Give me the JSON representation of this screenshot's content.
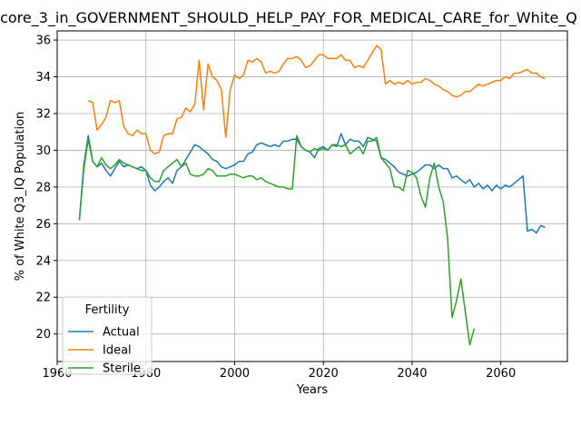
{
  "chart_data": {
    "type": "line",
    "title": "core_3_in_GOVERNMENT_SHOULD_HELP_PAY_FOR_MEDICAL_CARE_for_White_Q",
    "xlabel": "Years",
    "ylabel": "% of White Q3_IQ Population",
    "xlim": [
      1960,
      2075
    ],
    "ylim": [
      18.5,
      36.5
    ],
    "xticks": [
      1960,
      1980,
      2000,
      2020,
      2040,
      2060
    ],
    "yticks": [
      20,
      22,
      24,
      26,
      28,
      30,
      32,
      34,
      36
    ],
    "grid": true,
    "legend": {
      "title": "Fertility",
      "placement": "lower-left"
    },
    "series": [
      {
        "name": "Actual",
        "color": "#1f77b4",
        "points": [
          [
            1965,
            26.2
          ],
          [
            1966,
            29.2
          ],
          [
            1967,
            30.8
          ],
          [
            1968,
            29.4
          ],
          [
            1969,
            29.1
          ],
          [
            1970,
            29.3
          ],
          [
            1971,
            28.9
          ],
          [
            1972,
            28.6
          ],
          [
            1973,
            29.0
          ],
          [
            1974,
            29.4
          ],
          [
            1975,
            29.1
          ],
          [
            1976,
            29.2
          ],
          [
            1977,
            29.1
          ],
          [
            1978,
            29.0
          ],
          [
            1979,
            29.1
          ],
          [
            1980,
            28.9
          ],
          [
            1981,
            28.1
          ],
          [
            1982,
            27.8
          ],
          [
            1983,
            28.0
          ],
          [
            1984,
            28.3
          ],
          [
            1985,
            28.5
          ],
          [
            1986,
            28.2
          ],
          [
            1987,
            28.9
          ],
          [
            1988,
            29.1
          ],
          [
            1989,
            29.5
          ],
          [
            1990,
            29.9
          ],
          [
            1991,
            30.3
          ],
          [
            1992,
            30.2
          ],
          [
            1993,
            30.0
          ],
          [
            1994,
            29.8
          ],
          [
            1995,
            29.5
          ],
          [
            1996,
            29.4
          ],
          [
            1997,
            29.1
          ],
          [
            1998,
            29.0
          ],
          [
            1999,
            29.1
          ],
          [
            2000,
            29.2
          ],
          [
            2001,
            29.4
          ],
          [
            2002,
            29.4
          ],
          [
            2003,
            29.8
          ],
          [
            2004,
            29.9
          ],
          [
            2005,
            30.3
          ],
          [
            2006,
            30.4
          ],
          [
            2007,
            30.3
          ],
          [
            2008,
            30.2
          ],
          [
            2009,
            30.3
          ],
          [
            2010,
            30.2
          ],
          [
            2011,
            30.5
          ],
          [
            2012,
            30.5
          ],
          [
            2013,
            30.6
          ],
          [
            2014,
            30.6
          ],
          [
            2015,
            30.2
          ],
          [
            2016,
            30.0
          ],
          [
            2017,
            29.9
          ],
          [
            2018,
            29.6
          ],
          [
            2019,
            30.1
          ],
          [
            2020,
            30.2
          ],
          [
            2021,
            30.0
          ],
          [
            2022,
            30.3
          ],
          [
            2023,
            30.2
          ],
          [
            2024,
            30.9
          ],
          [
            2025,
            30.3
          ],
          [
            2026,
            30.6
          ],
          [
            2027,
            30.5
          ],
          [
            2028,
            30.5
          ],
          [
            2029,
            30.2
          ],
          [
            2030,
            30.7
          ],
          [
            2031,
            30.6
          ],
          [
            2032,
            30.5
          ],
          [
            2033,
            29.6
          ],
          [
            2034,
            29.5
          ],
          [
            2035,
            29.3
          ],
          [
            2036,
            29.1
          ],
          [
            2037,
            28.8
          ],
          [
            2038,
            28.7
          ],
          [
            2039,
            28.6
          ],
          [
            2040,
            28.7
          ],
          [
            2041,
            28.8
          ],
          [
            2042,
            29.0
          ],
          [
            2043,
            29.2
          ],
          [
            2044,
            29.2
          ],
          [
            2045,
            29.0
          ],
          [
            2046,
            29.2
          ],
          [
            2047,
            29.0
          ],
          [
            2048,
            29.0
          ],
          [
            2049,
            28.5
          ],
          [
            2050,
            28.6
          ],
          [
            2051,
            28.4
          ],
          [
            2052,
            28.2
          ],
          [
            2053,
            28.4
          ],
          [
            2054,
            28.0
          ],
          [
            2055,
            28.2
          ],
          [
            2056,
            27.9
          ],
          [
            2057,
            28.1
          ],
          [
            2058,
            27.8
          ],
          [
            2059,
            28.1
          ],
          [
            2060,
            27.9
          ],
          [
            2061,
            28.1
          ],
          [
            2062,
            28.0
          ],
          [
            2063,
            28.2
          ],
          [
            2064,
            28.4
          ],
          [
            2065,
            28.6
          ],
          [
            2066,
            25.6
          ],
          [
            2067,
            25.7
          ],
          [
            2068,
            25.5
          ],
          [
            2069,
            25.9
          ],
          [
            2070,
            25.8
          ]
        ]
      },
      {
        "name": "Ideal",
        "color": "#ff7f0e",
        "points": [
          [
            1967,
            32.7
          ],
          [
            1968,
            32.6
          ],
          [
            1969,
            31.1
          ],
          [
            1970,
            31.4
          ],
          [
            1971,
            31.8
          ],
          [
            1972,
            32.7
          ],
          [
            1973,
            32.6
          ],
          [
            1974,
            32.7
          ],
          [
            1975,
            31.3
          ],
          [
            1976,
            30.9
          ],
          [
            1977,
            30.8
          ],
          [
            1978,
            31.1
          ],
          [
            1979,
            30.9
          ],
          [
            1980,
            30.9
          ],
          [
            1981,
            30.0
          ],
          [
            1982,
            29.8
          ],
          [
            1983,
            29.9
          ],
          [
            1984,
            30.8
          ],
          [
            1985,
            30.9
          ],
          [
            1986,
            30.9
          ],
          [
            1987,
            31.7
          ],
          [
            1988,
            31.8
          ],
          [
            1989,
            32.3
          ],
          [
            1990,
            32.1
          ],
          [
            1991,
            32.5
          ],
          [
            1992,
            34.9
          ],
          [
            1993,
            32.2
          ],
          [
            1994,
            34.7
          ],
          [
            1995,
            34.0
          ],
          [
            1996,
            33.8
          ],
          [
            1997,
            33.3
          ],
          [
            1998,
            30.7
          ],
          [
            1999,
            33.3
          ],
          [
            2000,
            34.1
          ],
          [
            2001,
            33.9
          ],
          [
            2002,
            34.1
          ],
          [
            2003,
            34.9
          ],
          [
            2004,
            34.8
          ],
          [
            2005,
            35.0
          ],
          [
            2006,
            34.8
          ],
          [
            2007,
            34.2
          ],
          [
            2008,
            34.3
          ],
          [
            2009,
            34.2
          ],
          [
            2010,
            34.3
          ],
          [
            2011,
            34.7
          ],
          [
            2012,
            35.0
          ],
          [
            2013,
            35.0
          ],
          [
            2014,
            35.1
          ],
          [
            2015,
            34.9
          ],
          [
            2016,
            34.5
          ],
          [
            2017,
            34.6
          ],
          [
            2018,
            34.9
          ],
          [
            2019,
            35.2
          ],
          [
            2020,
            35.2
          ],
          [
            2021,
            35.0
          ],
          [
            2022,
            35.0
          ],
          [
            2023,
            35.0
          ],
          [
            2024,
            35.2
          ],
          [
            2025,
            34.9
          ],
          [
            2026,
            34.9
          ],
          [
            2027,
            34.5
          ],
          [
            2028,
            34.6
          ],
          [
            2029,
            34.5
          ],
          [
            2030,
            34.9
          ],
          [
            2031,
            35.3
          ],
          [
            2032,
            35.7
          ],
          [
            2033,
            35.5
          ],
          [
            2034,
            33.6
          ],
          [
            2035,
            33.8
          ],
          [
            2036,
            33.6
          ],
          [
            2037,
            33.7
          ],
          [
            2038,
            33.6
          ],
          [
            2039,
            33.8
          ],
          [
            2040,
            33.6
          ],
          [
            2041,
            33.7
          ],
          [
            2042,
            33.7
          ],
          [
            2043,
            33.9
          ],
          [
            2044,
            33.8
          ],
          [
            2045,
            33.6
          ],
          [
            2046,
            33.5
          ],
          [
            2047,
            33.3
          ],
          [
            2048,
            33.2
          ],
          [
            2049,
            33.0
          ],
          [
            2050,
            32.9
          ],
          [
            2051,
            33.0
          ],
          [
            2052,
            33.2
          ],
          [
            2053,
            33.2
          ],
          [
            2054,
            33.4
          ],
          [
            2055,
            33.6
          ],
          [
            2056,
            33.5
          ],
          [
            2057,
            33.6
          ],
          [
            2058,
            33.7
          ],
          [
            2059,
            33.8
          ],
          [
            2060,
            33.8
          ],
          [
            2061,
            34.0
          ],
          [
            2062,
            33.9
          ],
          [
            2063,
            34.2
          ],
          [
            2064,
            34.2
          ],
          [
            2065,
            34.3
          ],
          [
            2066,
            34.4
          ],
          [
            2067,
            34.2
          ],
          [
            2068,
            34.2
          ],
          [
            2069,
            34.0
          ],
          [
            2070,
            33.9
          ]
        ]
      },
      {
        "name": "Sterile",
        "color": "#2ca02c",
        "points": [
          [
            1965,
            26.2
          ],
          [
            1966,
            29.0
          ],
          [
            1967,
            30.6
          ],
          [
            1968,
            29.4
          ],
          [
            1969,
            29.1
          ],
          [
            1970,
            29.6
          ],
          [
            1971,
            29.2
          ],
          [
            1972,
            29.0
          ],
          [
            1973,
            29.2
          ],
          [
            1974,
            29.5
          ],
          [
            1975,
            29.3
          ],
          [
            1976,
            29.2
          ],
          [
            1977,
            29.1
          ],
          [
            1978,
            29.0
          ],
          [
            1979,
            28.9
          ],
          [
            1980,
            28.9
          ],
          [
            1981,
            28.5
          ],
          [
            1982,
            28.3
          ],
          [
            1983,
            28.3
          ],
          [
            1984,
            28.9
          ],
          [
            1985,
            29.1
          ],
          [
            1986,
            29.3
          ],
          [
            1987,
            29.5
          ],
          [
            1988,
            29.1
          ],
          [
            1989,
            29.3
          ],
          [
            1990,
            28.7
          ],
          [
            1991,
            28.6
          ],
          [
            1992,
            28.6
          ],
          [
            1993,
            28.7
          ],
          [
            1994,
            29.0
          ],
          [
            1995,
            28.9
          ],
          [
            1996,
            28.6
          ],
          [
            1997,
            28.6
          ],
          [
            1998,
            28.6
          ],
          [
            1999,
            28.7
          ],
          [
            2000,
            28.7
          ],
          [
            2001,
            28.6
          ],
          [
            2002,
            28.5
          ],
          [
            2003,
            28.6
          ],
          [
            2004,
            28.6
          ],
          [
            2005,
            28.4
          ],
          [
            2006,
            28.5
          ],
          [
            2007,
            28.3
          ],
          [
            2008,
            28.2
          ],
          [
            2009,
            28.1
          ],
          [
            2010,
            28.0
          ],
          [
            2011,
            28.0
          ],
          [
            2012,
            27.9
          ],
          [
            2013,
            27.9
          ],
          [
            2014,
            30.8
          ],
          [
            2015,
            30.2
          ],
          [
            2016,
            30.0
          ],
          [
            2017,
            29.9
          ],
          [
            2018,
            30.1
          ],
          [
            2019,
            30.0
          ],
          [
            2020,
            30.1
          ],
          [
            2021,
            30.0
          ],
          [
            2022,
            30.3
          ],
          [
            2023,
            30.3
          ],
          [
            2024,
            30.2
          ],
          [
            2025,
            30.3
          ],
          [
            2026,
            29.8
          ],
          [
            2027,
            30.0
          ],
          [
            2028,
            30.2
          ],
          [
            2029,
            29.8
          ],
          [
            2030,
            30.5
          ],
          [
            2031,
            30.5
          ],
          [
            2032,
            30.7
          ],
          [
            2033,
            29.6
          ],
          [
            2034,
            29.3
          ],
          [
            2035,
            29.0
          ],
          [
            2036,
            28.0
          ],
          [
            2037,
            28.0
          ],
          [
            2038,
            27.8
          ],
          [
            2039,
            28.9
          ],
          [
            2040,
            28.8
          ],
          [
            2041,
            28.5
          ],
          [
            2042,
            27.5
          ],
          [
            2043,
            26.9
          ],
          [
            2044,
            28.5
          ],
          [
            2045,
            29.3
          ],
          [
            2046,
            28.0
          ],
          [
            2047,
            27.2
          ],
          [
            2048,
            25.2
          ],
          [
            2049,
            20.9
          ],
          [
            2050,
            21.8
          ],
          [
            2051,
            23.0
          ],
          [
            2052,
            21.2
          ],
          [
            2053,
            19.4
          ],
          [
            2054,
            20.3
          ]
        ]
      }
    ]
  }
}
